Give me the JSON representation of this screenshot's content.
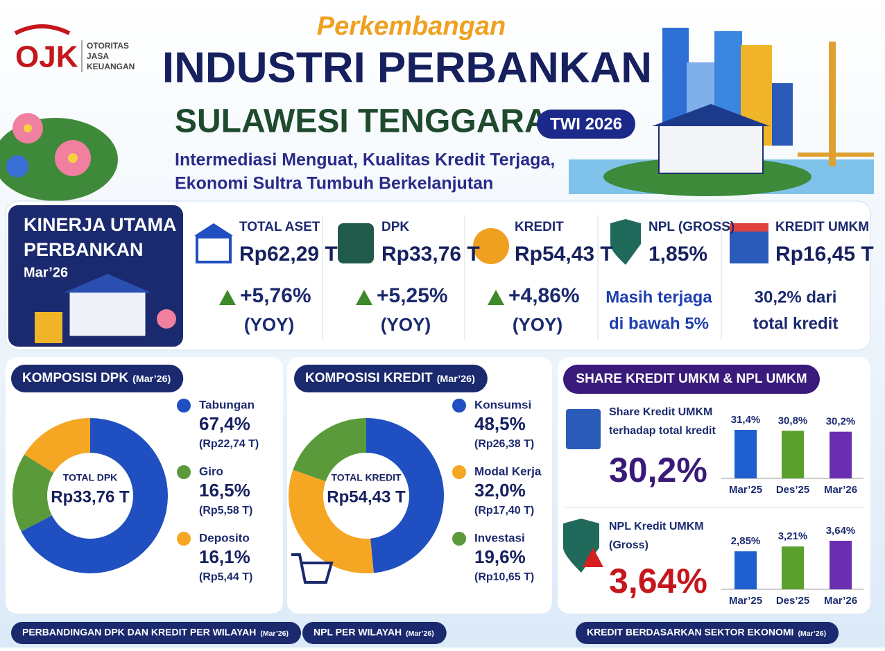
{
  "header": {
    "logo": {
      "mark": "OJK",
      "lines": [
        "OTORITAS",
        "JASA",
        "KEUANGAN"
      ]
    },
    "kicker": "Perkembangan",
    "title": "INDUSTRI PERBANKAN",
    "subtitle": "SULAWESI TENGGARA",
    "badge": "TWI 2026",
    "tagline": [
      "Intermediasi Menguat, Kualitas Kredit Terjaga,",
      "Ekonomi Sultra Tumbuh Berkelanjutan"
    ]
  },
  "kinerja": {
    "title": [
      "KINERJA UTAMA",
      "PERBANKAN"
    ],
    "period": "Mar’26",
    "items": [
      {
        "label": "TOTAL ASET",
        "value": "Rp62,29 T",
        "change": "+5,76%",
        "basis": "(YOY)"
      },
      {
        "label": "DPK",
        "value": "Rp33,76 T",
        "change": "+5,25%",
        "basis": "(YOY)"
      },
      {
        "label": "KREDIT",
        "value": "Rp54,43 T",
        "change": "+4,86%",
        "basis": "(YOY)"
      },
      {
        "label": "NPL (GROSS)",
        "value": "1,85%",
        "note": [
          "Masih terjaga",
          "di bawah 5%"
        ]
      },
      {
        "label": "KREDIT UMKM",
        "value": "Rp16,45 T",
        "note": [
          "30,2% dari",
          "total kredit"
        ]
      }
    ]
  },
  "komposisi": [
    {
      "type": "donut",
      "title": "KOMPOSISI DPK",
      "period": "(Mar’26)",
      "center_label": "TOTAL DPK",
      "center_value": "Rp33,76 T",
      "segments": [
        {
          "name": "Tabungan",
          "value": 67.4,
          "value_label": "67,4%",
          "amount": "(Rp22,74 T)",
          "color": "#1f4fc0"
        },
        {
          "name": "Giro",
          "value": 16.5,
          "value_label": "16,5%",
          "amount": "(Rp5,58 T)",
          "color": "#5a9a3a"
        },
        {
          "name": "Deposito",
          "value": 16.1,
          "value_label": "16,1%",
          "amount": "(Rp5,44 T)",
          "color": "#f5a623"
        }
      ]
    },
    {
      "type": "donut",
      "title": "KOMPOSISI KREDIT",
      "period": "(Mar’26)",
      "center_label": "TOTAL KREDIT",
      "center_value": "Rp54,43 T",
      "segments": [
        {
          "name": "Konsumsi",
          "value": 48.5,
          "value_label": "48,5%",
          "amount": "(Rp26,38 T)",
          "color": "#1f4fc0"
        },
        {
          "name": "Modal Kerja",
          "value": 32.0,
          "value_label": "32,0%",
          "amount": "(Rp17,40 T)",
          "color": "#f5a623"
        },
        {
          "name": "Investasi",
          "value": 19.6,
          "value_label": "19,6%",
          "amount": "(Rp10,65 T)",
          "color": "#5a9a3a"
        }
      ]
    }
  ],
  "umkm": {
    "title": "SHARE KREDIT UMKM & NPL UMKM",
    "charts": [
      {
        "type": "bar",
        "label": [
          "Share Kredit UMKM",
          "terhadap total kredit"
        ],
        "highlight": "30,2%",
        "highlight_color": "#3a1a78",
        "categories": [
          "Mar’25",
          "Des’25",
          "Mar’26"
        ],
        "values": [
          31.4,
          30.8,
          30.2
        ],
        "value_labels": [
          "31,4%",
          "30,8%",
          "30,2%"
        ],
        "colors": [
          "#1f5fd0",
          "#5aa02c",
          "#6a2fb0"
        ]
      },
      {
        "type": "bar",
        "label": [
          "NPL Kredit UMKM",
          "(Gross)"
        ],
        "highlight": "3,64%",
        "highlight_color": "#c4161c",
        "categories": [
          "Mar’25",
          "Des’25",
          "Mar’26"
        ],
        "values": [
          2.85,
          3.21,
          3.64
        ],
        "value_labels": [
          "2,85%",
          "3,21%",
          "3,64%"
        ],
        "colors": [
          "#1f5fd0",
          "#5aa02c",
          "#6a2fb0"
        ]
      }
    ]
  },
  "sections": [
    {
      "title": "PERBANDINGAN DPK DAN KREDIT PER WILAYAH",
      "period": "(Mar’26)"
    },
    {
      "title": "NPL PER WILAYAH",
      "period": "(Mar’26)"
    },
    {
      "title": "KREDIT BERDASARKAN SEKTOR EKONOMI",
      "period": "(Mar’26)"
    }
  ]
}
